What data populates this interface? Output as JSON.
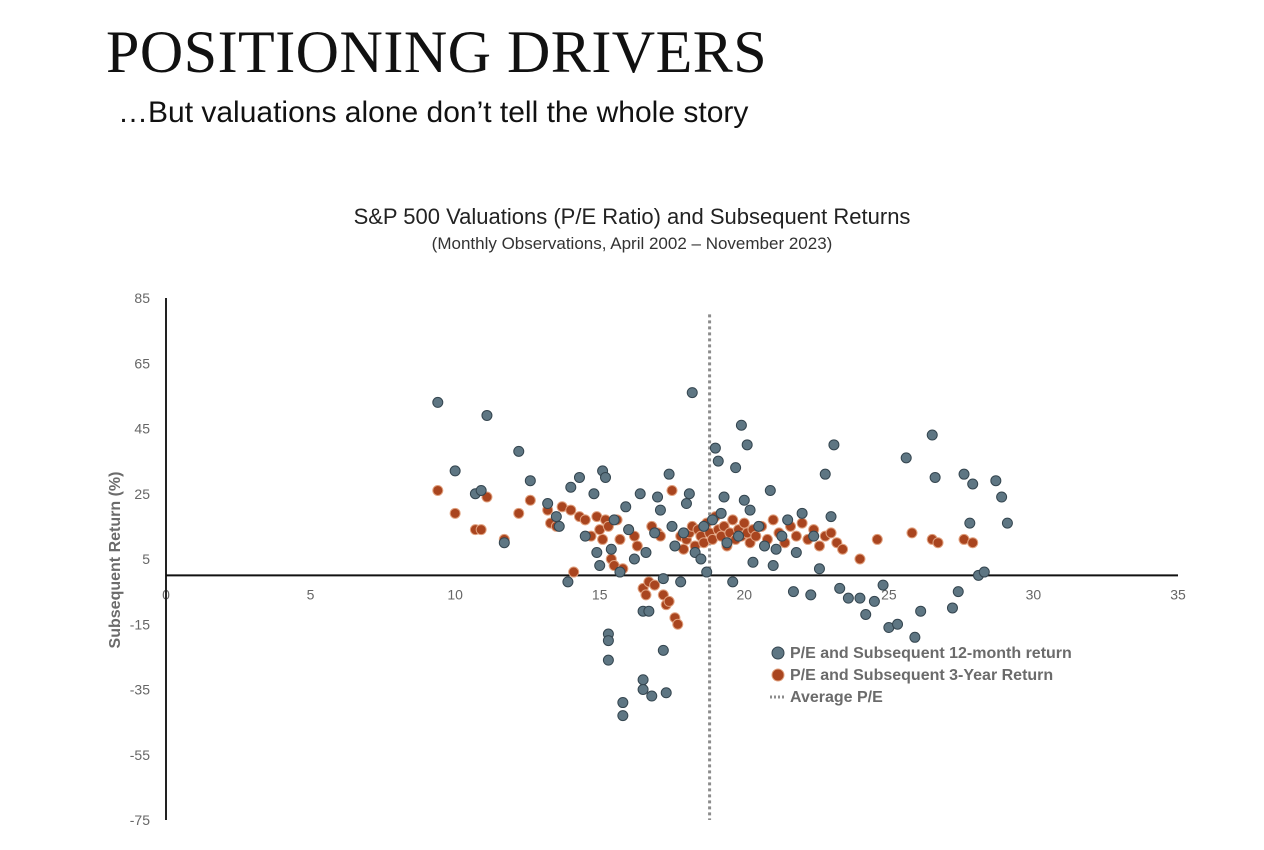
{
  "slide": {
    "title": "POSITIONING DRIVERS",
    "subtitle": "…But valuations alone don’t tell the whole story"
  },
  "chart_data": {
    "type": "scatter",
    "title": "S&P 500 Valuations (P/E Ratio) and Subsequent Returns",
    "subtitle": "(Monthly Observations, April 2002 – November 2023)",
    "xlabel": "",
    "ylabel": "Subsequent Return (%)",
    "xlim": [
      0,
      35
    ],
    "ylim": [
      -75,
      85
    ],
    "x_ticks": [
      0,
      5,
      10,
      15,
      20,
      25,
      30,
      35
    ],
    "y_ticks": [
      85,
      65,
      45,
      25,
      5,
      -15,
      -35,
      -55,
      -75
    ],
    "average_pe": 18.8,
    "legend_position": "bottom-right",
    "colors": {
      "twelve_month": "#5e7683",
      "three_year": "#a9451f",
      "average_line": "#8c8c8c"
    },
    "series": [
      {
        "name": "P/E and Subsequent 12-month return",
        "points": [
          [
            9.4,
            53
          ],
          [
            10,
            32
          ],
          [
            10.7,
            25
          ],
          [
            10.9,
            26
          ],
          [
            11.1,
            49
          ],
          [
            11.7,
            10
          ],
          [
            12.2,
            38
          ],
          [
            12.6,
            29
          ],
          [
            13.2,
            22
          ],
          [
            13.5,
            18
          ],
          [
            13.6,
            15
          ],
          [
            13.9,
            -2
          ],
          [
            14,
            27
          ],
          [
            14.3,
            30
          ],
          [
            14.5,
            12
          ],
          [
            14.8,
            25
          ],
          [
            14.9,
            7
          ],
          [
            15,
            3
          ],
          [
            15.1,
            32
          ],
          [
            15.2,
            30
          ],
          [
            15.3,
            -18
          ],
          [
            15.3,
            -20
          ],
          [
            15.3,
            -26
          ],
          [
            15.4,
            8
          ],
          [
            15.5,
            17
          ],
          [
            15.7,
            1
          ],
          [
            15.8,
            -39
          ],
          [
            15.8,
            -43
          ],
          [
            15.9,
            21
          ],
          [
            16,
            14
          ],
          [
            16.2,
            5
          ],
          [
            16.4,
            25
          ],
          [
            16.5,
            -11
          ],
          [
            16.5,
            -32
          ],
          [
            16.5,
            -35
          ],
          [
            16.6,
            7
          ],
          [
            16.7,
            -11
          ],
          [
            16.8,
            -37
          ],
          [
            16.9,
            13
          ],
          [
            17,
            24
          ],
          [
            17.1,
            20
          ],
          [
            17.2,
            -1
          ],
          [
            17.2,
            -23
          ],
          [
            17.3,
            -36
          ],
          [
            17.4,
            31
          ],
          [
            17.5,
            15
          ],
          [
            17.6,
            9
          ],
          [
            17.8,
            -2
          ],
          [
            17.9,
            13
          ],
          [
            18,
            22
          ],
          [
            18.1,
            25
          ],
          [
            18.2,
            56
          ],
          [
            18.3,
            7
          ],
          [
            18.5,
            5
          ],
          [
            18.6,
            15
          ],
          [
            18.7,
            1
          ],
          [
            18.9,
            17
          ],
          [
            19,
            39
          ],
          [
            19.1,
            35
          ],
          [
            19.2,
            19
          ],
          [
            19.3,
            24
          ],
          [
            19.4,
            10
          ],
          [
            19.6,
            -2
          ],
          [
            19.7,
            33
          ],
          [
            19.8,
            12
          ],
          [
            19.9,
            46
          ],
          [
            20,
            23
          ],
          [
            20.1,
            40
          ],
          [
            20.2,
            20
          ],
          [
            20.3,
            4
          ],
          [
            20.5,
            15
          ],
          [
            20.7,
            9
          ],
          [
            20.9,
            26
          ],
          [
            21,
            3
          ],
          [
            21.1,
            8
          ],
          [
            21.3,
            12
          ],
          [
            21.5,
            17
          ],
          [
            21.7,
            -5
          ],
          [
            21.8,
            7
          ],
          [
            22,
            19
          ],
          [
            22.3,
            -6
          ],
          [
            22.4,
            12
          ],
          [
            22.6,
            2
          ],
          [
            22.8,
            31
          ],
          [
            23,
            18
          ],
          [
            23.1,
            40
          ],
          [
            23.3,
            -4
          ],
          [
            23.6,
            -7
          ],
          [
            24,
            -7
          ],
          [
            24.2,
            -12
          ],
          [
            24.5,
            -8
          ],
          [
            24.8,
            -3
          ],
          [
            25,
            -16
          ],
          [
            25.3,
            -15
          ],
          [
            25.6,
            36
          ],
          [
            25.9,
            -19
          ],
          [
            26.1,
            -11
          ],
          [
            26.5,
            43
          ],
          [
            26.6,
            30
          ],
          [
            27.2,
            -10
          ],
          [
            27.4,
            -5
          ],
          [
            27.6,
            31
          ],
          [
            27.8,
            16
          ],
          [
            27.9,
            28
          ],
          [
            28.1,
            0
          ],
          [
            28.3,
            1
          ],
          [
            28.9,
            24
          ],
          [
            28.7,
            29
          ],
          [
            29.1,
            16
          ]
        ]
      },
      {
        "name": "P/E and Subsequent 3-Year Return",
        "points": [
          [
            9.4,
            26
          ],
          [
            10,
            19
          ],
          [
            10.7,
            14
          ],
          [
            10.9,
            14
          ],
          [
            11.1,
            24
          ],
          [
            11.7,
            11
          ],
          [
            12.2,
            19
          ],
          [
            12.6,
            23
          ],
          [
            13.2,
            20
          ],
          [
            13.3,
            16
          ],
          [
            13.5,
            15
          ],
          [
            13.7,
            21
          ],
          [
            14,
            20
          ],
          [
            14.1,
            1
          ],
          [
            14.3,
            18
          ],
          [
            14.5,
            17
          ],
          [
            14.7,
            12
          ],
          [
            14.9,
            18
          ],
          [
            15,
            14
          ],
          [
            15.1,
            11
          ],
          [
            15.2,
            17
          ],
          [
            15.3,
            15
          ],
          [
            15.4,
            5
          ],
          [
            15.5,
            3
          ],
          [
            15.6,
            17
          ],
          [
            15.7,
            11
          ],
          [
            15.8,
            2
          ],
          [
            16,
            14
          ],
          [
            16.2,
            12
          ],
          [
            16.3,
            9
          ],
          [
            16.5,
            -4
          ],
          [
            16.6,
            -6
          ],
          [
            16.7,
            -2
          ],
          [
            16.8,
            15
          ],
          [
            16.9,
            -3
          ],
          [
            17,
            13
          ],
          [
            17.1,
            12
          ],
          [
            17.2,
            -6
          ],
          [
            17.3,
            -9
          ],
          [
            17.4,
            -8
          ],
          [
            17.5,
            26
          ],
          [
            17.6,
            -13
          ],
          [
            17.7,
            -15
          ],
          [
            17.8,
            12
          ],
          [
            17.9,
            8
          ],
          [
            18,
            11
          ],
          [
            18.1,
            13
          ],
          [
            18.2,
            15
          ],
          [
            18.3,
            9
          ],
          [
            18.4,
            14
          ],
          [
            18.5,
            12
          ],
          [
            18.6,
            10
          ],
          [
            18.7,
            16
          ],
          [
            18.8,
            13
          ],
          [
            18.9,
            11
          ],
          [
            19,
            18
          ],
          [
            19.1,
            14
          ],
          [
            19.2,
            12
          ],
          [
            19.3,
            15
          ],
          [
            19.4,
            9
          ],
          [
            19.5,
            13
          ],
          [
            19.6,
            17
          ],
          [
            19.7,
            11
          ],
          [
            19.8,
            14
          ],
          [
            19.9,
            12
          ],
          [
            20,
            16
          ],
          [
            20.1,
            13
          ],
          [
            20.2,
            10
          ],
          [
            20.3,
            14
          ],
          [
            20.4,
            12
          ],
          [
            20.6,
            15
          ],
          [
            20.8,
            11
          ],
          [
            21,
            17
          ],
          [
            21.2,
            13
          ],
          [
            21.4,
            10
          ],
          [
            21.6,
            15
          ],
          [
            21.8,
            12
          ],
          [
            22,
            16
          ],
          [
            22.2,
            11
          ],
          [
            22.4,
            14
          ],
          [
            22.6,
            9
          ],
          [
            22.8,
            12
          ],
          [
            23,
            13
          ],
          [
            23.2,
            10
          ],
          [
            23.4,
            8
          ],
          [
            24,
            5
          ],
          [
            24.6,
            11
          ],
          [
            25.8,
            13
          ],
          [
            26.5,
            11
          ],
          [
            26.7,
            10
          ],
          [
            27.6,
            11
          ],
          [
            27.9,
            10
          ]
        ]
      }
    ],
    "legend": [
      {
        "label": "P/E and Subsequent 12-month return",
        "marker": "dot-slate"
      },
      {
        "label": "P/E and Subsequent 3-Year Return",
        "marker": "dot-rust"
      },
      {
        "label": "Average P/E",
        "marker": "dotted-line"
      }
    ]
  }
}
